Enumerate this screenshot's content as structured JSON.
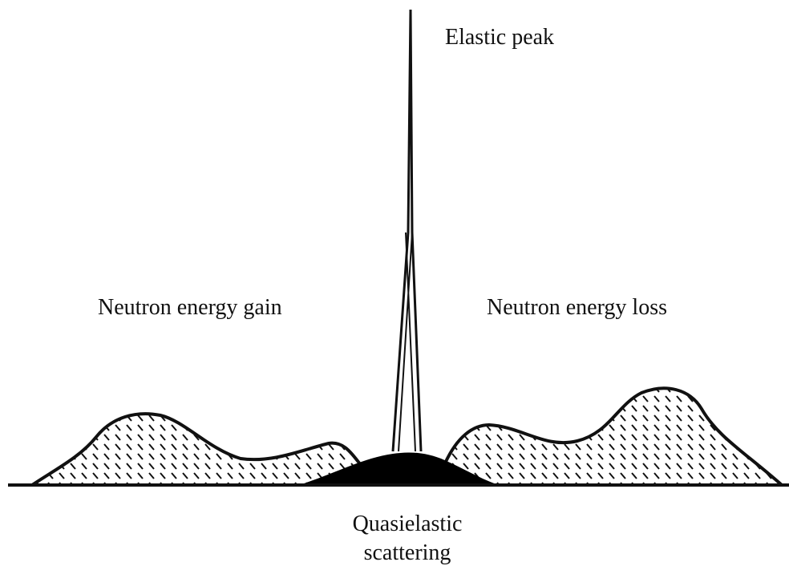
{
  "labels": {
    "elastic": "Elastic peak",
    "gain": "Neutron energy gain",
    "loss": "Neutron energy loss",
    "quasielastic": [
      "Quasielastic",
      "scattering"
    ]
  }
}
